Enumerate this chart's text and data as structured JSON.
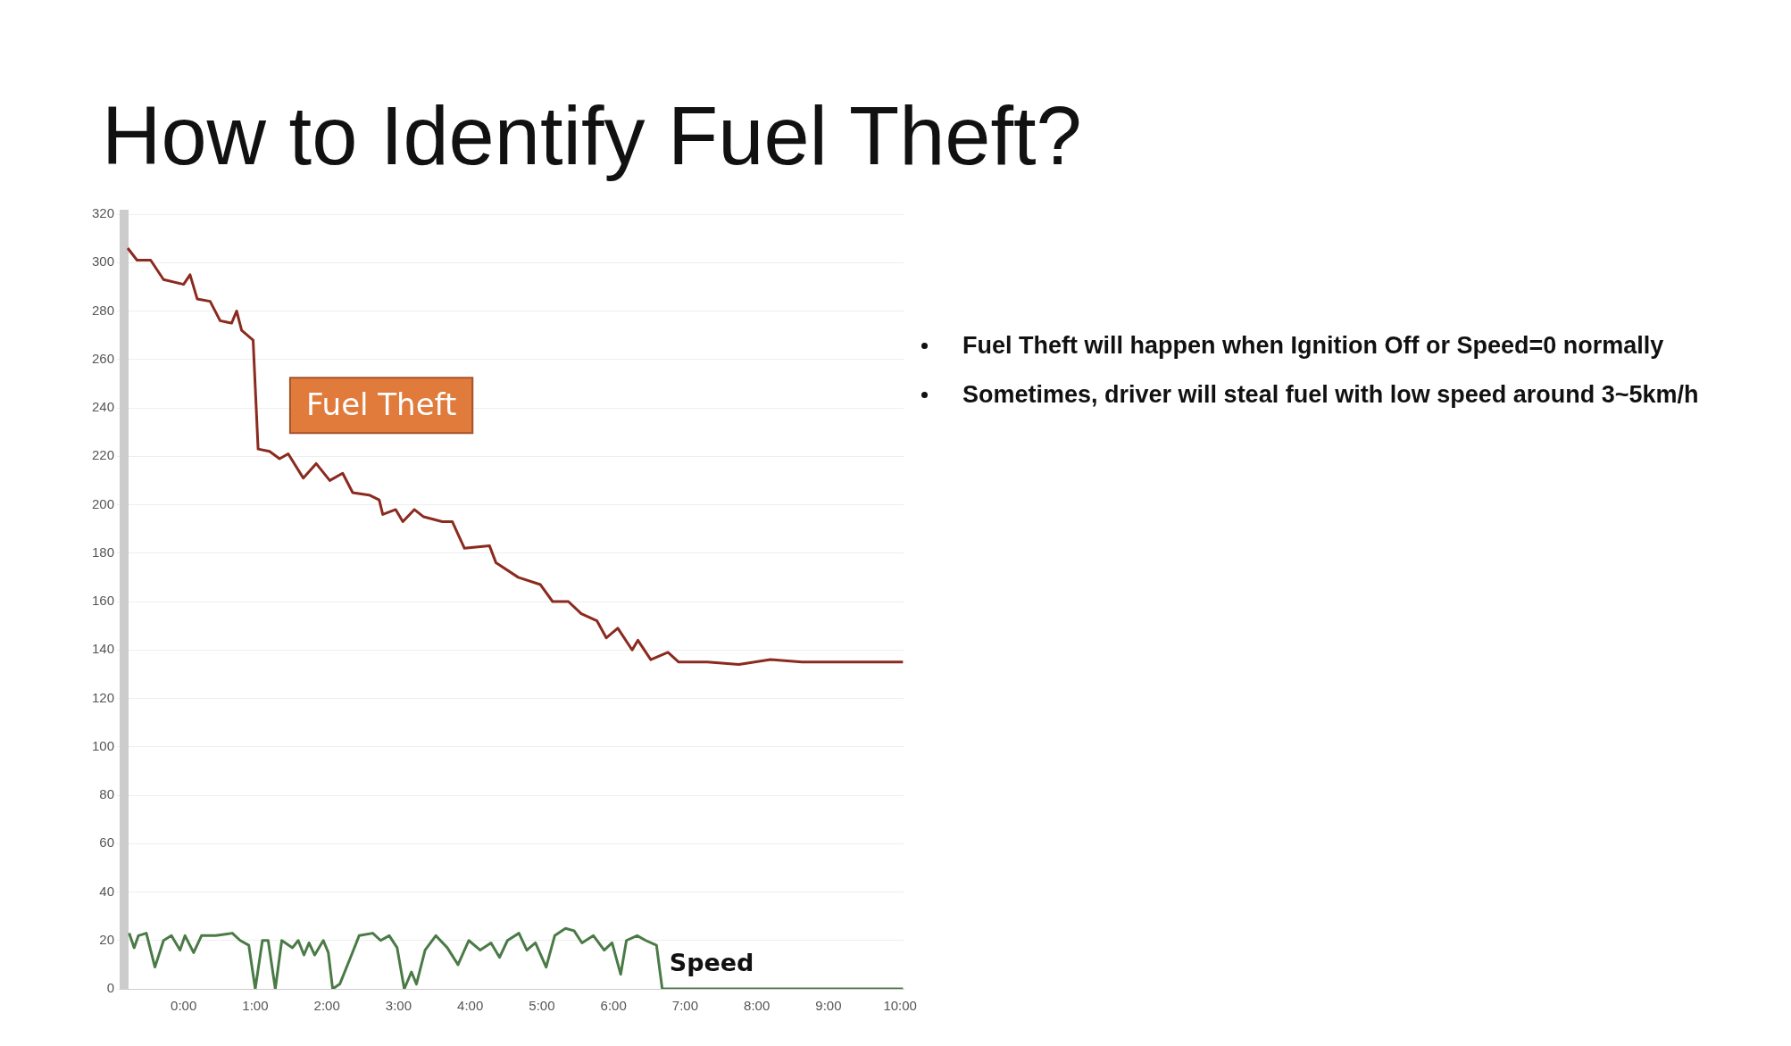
{
  "chart_data": {
    "type": "line",
    "title": "How to Identify Fuel Theft?",
    "annotations": [
      {
        "text": "Fuel Theft",
        "x": 1.05,
        "y": 241
      },
      "Fuel Theft will happen when Ignition Off or Speed=0 normally",
      "Sometimes, driver will steal fuel with low speed around 3~5km/h"
    ],
    "xlim": [
      -0.83,
      10.05
    ],
    "xticks": [
      {
        "value": 0,
        "label": "0:00"
      },
      {
        "value": 1,
        "label": "1:00"
      },
      {
        "value": 2,
        "label": "2:00"
      },
      {
        "value": 3,
        "label": "3:00"
      },
      {
        "value": 4,
        "label": "4:00"
      },
      {
        "value": 5,
        "label": "5:00"
      },
      {
        "value": 6,
        "label": "6:00"
      },
      {
        "value": 7,
        "label": "7:00"
      },
      {
        "value": 8,
        "label": "8:00"
      },
      {
        "value": 9,
        "label": "9:00"
      },
      {
        "value": 10,
        "label": "10:00"
      }
    ],
    "ylim": [
      0,
      320
    ],
    "yticks": [
      0,
      20,
      40,
      60,
      80,
      100,
      120,
      140,
      160,
      180,
      200,
      220,
      240,
      260,
      280,
      300,
      320
    ],
    "grid": "y",
    "legend": false,
    "marker": "none",
    "line_style": "solid",
    "series": [
      {
        "color": "#8b2a1f",
        "x": [
          -0.78,
          -0.65,
          -0.46,
          -0.28,
          0,
          0.09,
          0.19,
          0.37,
          0.51,
          0.67,
          0.74,
          0.81,
          0.97,
          1.04,
          1.2,
          1.34,
          1.46,
          1.67,
          1.85,
          2.04,
          2.22,
          2.36,
          2.59,
          2.73,
          2.78,
          2.96,
          3.06,
          3.22,
          3.35,
          3.61,
          3.75,
          3.92,
          4.27,
          4.36,
          4.67,
          4.98,
          5.15,
          5.37,
          5.55,
          5.77,
          5.9,
          6.06,
          6.26,
          6.34,
          6.52,
          6.76,
          6.91,
          7.31,
          7.75,
          8.19,
          8.63,
          9.07,
          9.51,
          10.04
        ],
        "values": [
          306,
          301,
          301,
          293,
          291,
          295,
          285,
          284,
          276,
          275,
          280,
          272,
          268,
          223,
          222,
          219,
          221,
          211,
          217,
          210,
          213,
          205,
          204,
          202,
          196,
          198,
          193,
          198,
          195,
          193,
          193,
          182,
          183,
          176,
          170,
          167,
          160,
          160,
          155,
          152,
          145,
          149,
          140,
          144,
          136,
          139,
          135,
          135,
          134,
          136,
          135,
          135,
          135,
          135
        ]
      },
      {
        "name": "Speed",
        "color": "#4a7a46",
        "x": [
          -0.76,
          -0.69,
          -0.63,
          -0.52,
          -0.4,
          -0.28,
          -0.17,
          -0.05,
          0.02,
          0.14,
          0.25,
          0.45,
          0.68,
          0.79,
          0.91,
          1.0,
          1.1,
          1.18,
          1.28,
          1.37,
          1.52,
          1.6,
          1.68,
          1.75,
          1.83,
          1.95,
          2.02,
          2.08,
          2.18,
          2.33,
          2.45,
          2.64,
          2.75,
          2.87,
          2.98,
          3.08,
          3.18,
          3.25,
          3.37,
          3.52,
          3.68,
          3.83,
          3.98,
          4.14,
          4.29,
          4.41,
          4.52,
          4.68,
          4.79,
          4.91,
          5.06,
          5.18,
          5.33,
          5.45,
          5.56,
          5.72,
          5.87,
          5.98,
          6.1,
          6.18,
          6.33,
          6.45,
          6.6,
          6.68,
          10.04
        ],
        "values": [
          23,
          17,
          22,
          23,
          9,
          20,
          22,
          16,
          22,
          15,
          22,
          22,
          23,
          20,
          18,
          0,
          20,
          20,
          0,
          20,
          17,
          20,
          14,
          19,
          14,
          20,
          15,
          0,
          2,
          13,
          22,
          23,
          20,
          22,
          17,
          0,
          7,
          2,
          16,
          22,
          17,
          10,
          20,
          16,
          19,
          13,
          20,
          23,
          16,
          19,
          9,
          22,
          25,
          24,
          19,
          22,
          16,
          19,
          6,
          20,
          22,
          20,
          18,
          0,
          0
        ]
      }
    ]
  }
}
